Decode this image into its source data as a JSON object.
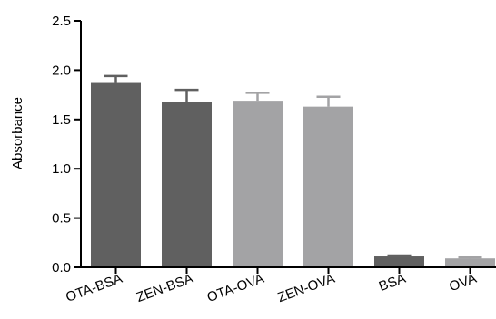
{
  "chart_data": {
    "type": "bar",
    "title": "",
    "xlabel": "",
    "ylabel": "Absorbance",
    "ylim": [
      0,
      2.5
    ],
    "yticks": [
      "0.0",
      "0.5",
      "1.0",
      "1.5",
      "2.0",
      "2.5"
    ],
    "grid": false,
    "categories": [
      "OTA-BSA",
      "ZEN-BSA",
      "OTA-OVA",
      "ZEN-OVA",
      "BSA",
      "OVA"
    ],
    "values": [
      1.87,
      1.68,
      1.69,
      1.63,
      0.11,
      0.09
    ],
    "errors": [
      0.07,
      0.12,
      0.08,
      0.1,
      0.01,
      0.01
    ],
    "colors": [
      "#606060",
      "#606060",
      "#a3a3a5",
      "#a3a3a5",
      "#606060",
      "#a3a3a5"
    ]
  }
}
